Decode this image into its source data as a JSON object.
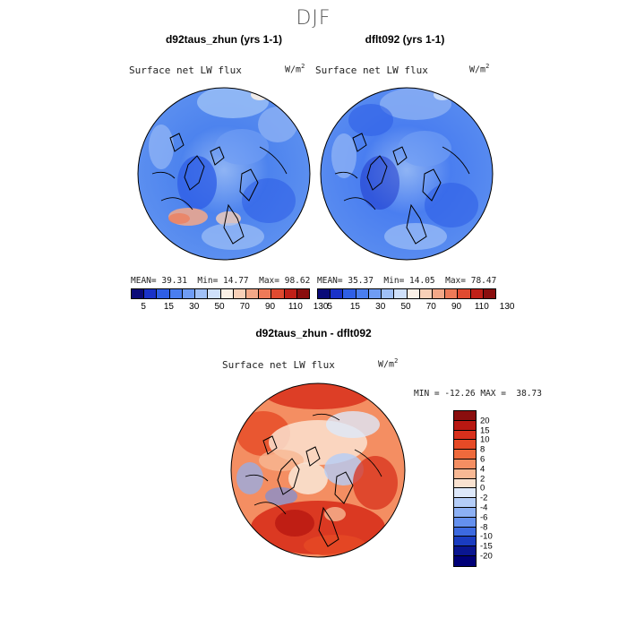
{
  "season": "DJF",
  "panels": [
    {
      "title": "d92taus_zhun (yrs 1-1)",
      "variable": "Surface net LW flux",
      "units": "W/m",
      "mean_label": "MEAN=",
      "mean": "39.31",
      "min_label": "Min=",
      "min": "14.77",
      "max_label": "Max=",
      "max": "98.62"
    },
    {
      "title": "dflt092 (yrs 1-1)",
      "variable": "Surface net LW flux",
      "units": "W/m",
      "mean_label": "MEAN=",
      "mean": "35.37",
      "min_label": "Min=",
      "min": "14.05",
      "max_label": "Max=",
      "max": "78.47"
    }
  ],
  "colorbar_top": {
    "labels": [
      "5",
      "15",
      "30",
      "50",
      "70",
      "90",
      "110",
      "130"
    ],
    "colors": [
      "#0a0a78",
      "#1a32c8",
      "#2f5fe6",
      "#4a7ef0",
      "#6f9cf4",
      "#a0c0f6",
      "#cfe0fa",
      "#faf0e6",
      "#f8d0b8",
      "#f4a888",
      "#ee7a58",
      "#e04a30",
      "#c02018",
      "#8a0e0e"
    ]
  },
  "diff_panel": {
    "title": "d92taus_zhun - dflt092",
    "variable": "Surface net LW flux",
    "units": "W/m",
    "stats": "MIN = -12.26 MAX =  38.73"
  },
  "colorbar_diff": {
    "labels": [
      "20",
      "15",
      "10",
      "8",
      "6",
      "4",
      "2",
      "0",
      "-2",
      "-4",
      "-6",
      "-8",
      "-10",
      "-15",
      "-20"
    ],
    "colors": [
      "#8a0e0e",
      "#b81812",
      "#d8301c",
      "#e64a26",
      "#ee6a3c",
      "#f48e62",
      "#f8b894",
      "#fae2d0",
      "#dde8fa",
      "#b4cdf8",
      "#8cb0f4",
      "#6490ee",
      "#3c6ae0",
      "#1a3cc0",
      "#0a1690",
      "#000078"
    ]
  }
}
